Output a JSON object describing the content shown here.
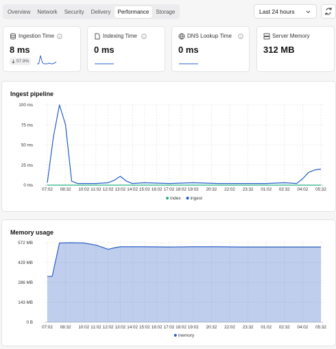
{
  "tabs": [
    "Overview",
    "Network",
    "Security",
    "Delivery",
    "Performance",
    "Storage"
  ],
  "range_select": "Last 24 hours",
  "metrics": [
    {
      "label": "Ingestion Time",
      "value": "8 ms",
      "change": "57.9%",
      "sparkline": [
        2,
        2,
        14,
        4,
        2,
        2,
        2,
        3,
        2,
        2,
        3,
        5
      ]
    },
    {
      "label": "Indexing Time",
      "value": "0 ms",
      "sparkline": [
        0,
        0,
        0,
        0,
        0,
        0,
        0,
        0
      ]
    },
    {
      "label": "DNS Lookup Time",
      "value": "0 ms",
      "sparkline": [
        0,
        0,
        0,
        0,
        0,
        0,
        0,
        0
      ]
    },
    {
      "label": "Server Memory",
      "value": "312 MB"
    }
  ],
  "chart_data": [
    {
      "type": "line",
      "title": "Ingest pipeline",
      "x": [
        0,
        0.5,
        1,
        1.5,
        2,
        2.5,
        3,
        4,
        5,
        5.5,
        6,
        6.5,
        7,
        8,
        10,
        12,
        14,
        16,
        18,
        19.5,
        20.5,
        21,
        21.5,
        22,
        22.5
      ],
      "series": [
        {
          "name": "index",
          "color": "#2bb07f",
          "values": [
            0,
            0,
            0,
            0,
            0,
            0,
            0,
            0,
            0,
            0,
            0,
            0,
            0,
            0,
            0,
            0,
            0,
            0,
            0,
            0,
            0,
            0,
            0,
            0,
            0
          ]
        },
        {
          "name": "ingest",
          "color": "#1f5cc6",
          "values": [
            3,
            60,
            100,
            75,
            5,
            2,
            2,
            2,
            3,
            6,
            11,
            5,
            2,
            3,
            2,
            3,
            2,
            2,
            2,
            3,
            2,
            8,
            16,
            19,
            20
          ]
        }
      ],
      "xlim": [
        0,
        22.5
      ],
      "xticks": [
        {
          "value": 0,
          "label": "07:02"
        },
        {
          "value": 1.5,
          "label": "08:32"
        },
        {
          "value": 3,
          "label": "10:02"
        },
        {
          "value": 4,
          "label": "11:02"
        },
        {
          "value": 5,
          "label": "12:02"
        },
        {
          "value": 6,
          "label": "13:02"
        },
        {
          "value": 7,
          "label": "14:02"
        },
        {
          "value": 8,
          "label": "15:02"
        },
        {
          "value": 9,
          "label": "16:02"
        },
        {
          "value": 10,
          "label": "17:02"
        },
        {
          "value": 11,
          "label": "18:02"
        },
        {
          "value": 12,
          "label": "19:02"
        },
        {
          "value": 13.5,
          "label": "20:32"
        },
        {
          "value": 15,
          "label": "22:02"
        },
        {
          "value": 16.5,
          "label": "23:32"
        },
        {
          "value": 18,
          "label": "01:02"
        },
        {
          "value": 19.5,
          "label": "02:32"
        },
        {
          "value": 21,
          "label": "04:02"
        },
        {
          "value": 22.5,
          "label": "05:32"
        }
      ],
      "ylim": [
        0,
        100
      ],
      "yticks": [
        {
          "value": 0,
          "label": "0 ms"
        },
        {
          "value": 25,
          "label": "25 ms"
        },
        {
          "value": 50,
          "label": "50 ms"
        },
        {
          "value": 75,
          "label": "75 ms"
        },
        {
          "value": 100,
          "label": "100 ms"
        }
      ],
      "grid": true,
      "legend": "bottom"
    },
    {
      "type": "area",
      "title": "Memory usage",
      "x": [
        0,
        0.4,
        1,
        2,
        3,
        4,
        5,
        5.5,
        6,
        8,
        10,
        12,
        14,
        16,
        18,
        20,
        22.5
      ],
      "series": [
        {
          "name": "memory",
          "color": "#2a5ec4",
          "values": [
            330,
            330,
            570,
            572,
            570,
            555,
            525,
            535,
            543,
            543,
            541,
            543,
            543,
            541,
            541,
            541,
            541
          ]
        }
      ],
      "xlim": [
        0,
        22.5
      ],
      "xticks": [
        {
          "value": 0,
          "label": "07:02"
        },
        {
          "value": 1.5,
          "label": "08:32"
        },
        {
          "value": 3,
          "label": "10:02"
        },
        {
          "value": 4,
          "label": "11:02"
        },
        {
          "value": 5,
          "label": "12:02"
        },
        {
          "value": 6,
          "label": "13:02"
        },
        {
          "value": 7,
          "label": "14:02"
        },
        {
          "value": 8,
          "label": "15:02"
        },
        {
          "value": 9,
          "label": "16:02"
        },
        {
          "value": 10,
          "label": "17:02"
        },
        {
          "value": 11,
          "label": "18:02"
        },
        {
          "value": 12,
          "label": "19:02"
        },
        {
          "value": 13.5,
          "label": "20:32"
        },
        {
          "value": 15,
          "label": "22:02"
        },
        {
          "value": 16.5,
          "label": "23:32"
        },
        {
          "value": 18,
          "label": "01:02"
        },
        {
          "value": 19.5,
          "label": "02:32"
        },
        {
          "value": 21,
          "label": "04:02"
        },
        {
          "value": 22.5,
          "label": "05:32"
        }
      ],
      "ylim": [
        0,
        572
      ],
      "yticks": [
        {
          "value": 0,
          "label": "0 B"
        },
        {
          "value": 143,
          "label": "143 MB"
        },
        {
          "value": 286,
          "label": "286 MB"
        },
        {
          "value": 429,
          "label": "429 MB"
        },
        {
          "value": 572,
          "label": "572 MB"
        }
      ],
      "grid": true,
      "legend": "bottom"
    }
  ]
}
